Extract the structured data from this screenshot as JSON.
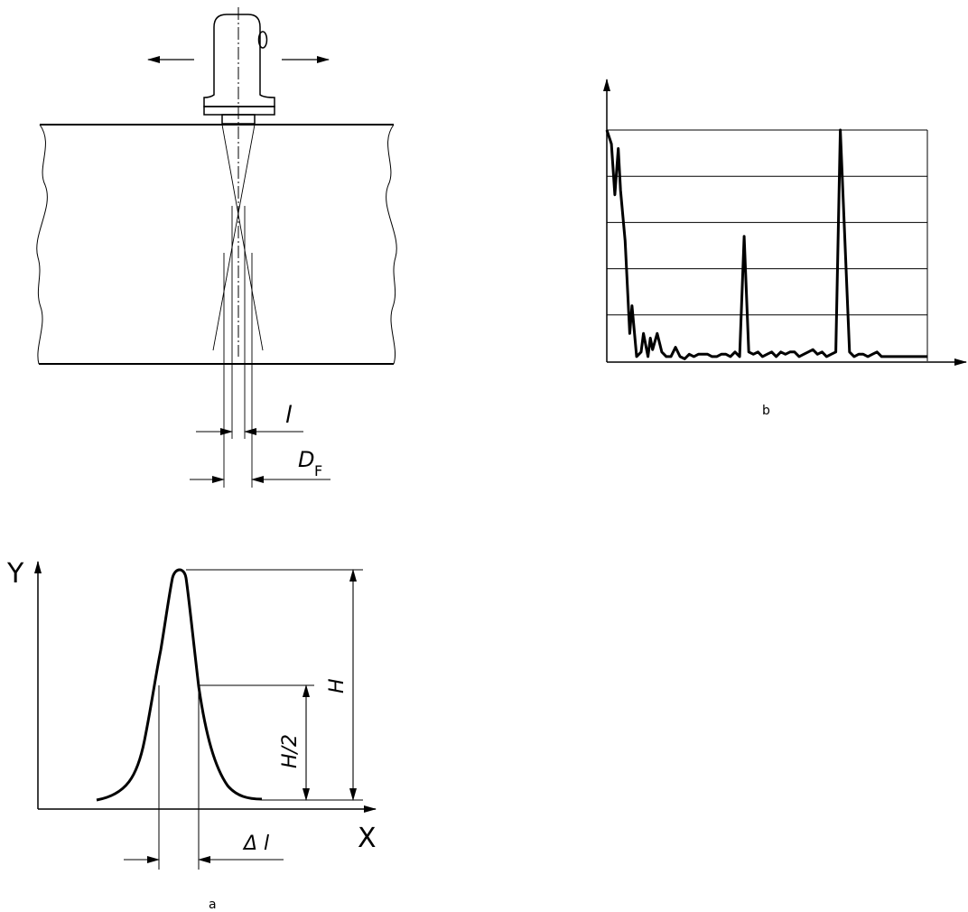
{
  "labels": {
    "l": "l",
    "D": "D",
    "F": "F",
    "b": "b",
    "Y": "Y",
    "X": "X",
    "H": "H",
    "H_half": "H/2",
    "delta_l": "Δ l",
    "a": "a"
  },
  "colors": {
    "ink": "#000000",
    "paper": "#ffffff"
  },
  "chart_data": {
    "type": "line",
    "title": "",
    "xlabel": "",
    "ylabel": "",
    "grid": true,
    "legend": "none",
    "ylim": [
      0,
      5
    ],
    "series": [
      {
        "x": [
          0.0,
          0.2,
          0.35,
          0.5,
          0.6,
          0.8,
          1.0,
          1.1,
          1.3,
          1.5,
          1.6,
          1.8,
          1.9,
          2.0,
          2.2,
          2.4,
          2.6,
          2.8,
          3.0,
          3.2,
          3.4,
          3.6,
          3.8,
          4.0,
          4.2,
          4.4,
          4.6,
          4.8,
          5.0,
          5.2,
          5.4,
          5.6,
          5.8,
          6.0,
          6.2,
          6.4,
          6.6,
          6.8,
          7.0,
          7.2,
          7.4,
          7.6,
          7.8,
          8.0,
          8.2,
          8.4,
          8.6,
          8.8,
          9.0,
          9.2,
          9.4,
          9.6,
          9.8,
          10.0,
          10.2,
          10.4,
          10.6,
          10.8,
          11.0,
          11.2,
          11.4,
          11.6,
          11.8,
          12.0,
          12.2,
          12.4,
          12.6,
          12.8,
          13.0,
          13.2,
          13.4,
          13.6,
          13.8,
          14.0
        ],
        "y": [
          5.0,
          4.7,
          3.6,
          4.6,
          3.7,
          2.6,
          0.6,
          1.2,
          0.1,
          0.2,
          0.6,
          0.1,
          0.5,
          0.25,
          0.6,
          0.2,
          0.1,
          0.1,
          0.3,
          0.1,
          0.05,
          0.15,
          0.1,
          0.15,
          0.15,
          0.15,
          0.1,
          0.1,
          0.15,
          0.15,
          0.1,
          0.2,
          0.1,
          2.7,
          0.2,
          0.15,
          0.2,
          0.1,
          0.15,
          0.2,
          0.1,
          0.2,
          0.15,
          0.2,
          0.2,
          0.1,
          0.15,
          0.2,
          0.25,
          0.15,
          0.2,
          0.1,
          0.15,
          0.2,
          5.0,
          2.6,
          0.2,
          0.1,
          0.15,
          0.15,
          0.1,
          0.15,
          0.2,
          0.1,
          0.1,
          0.1,
          0.1,
          0.1,
          0.1,
          0.1,
          0.1,
          0.1,
          0.1,
          0.1
        ]
      }
    ]
  }
}
